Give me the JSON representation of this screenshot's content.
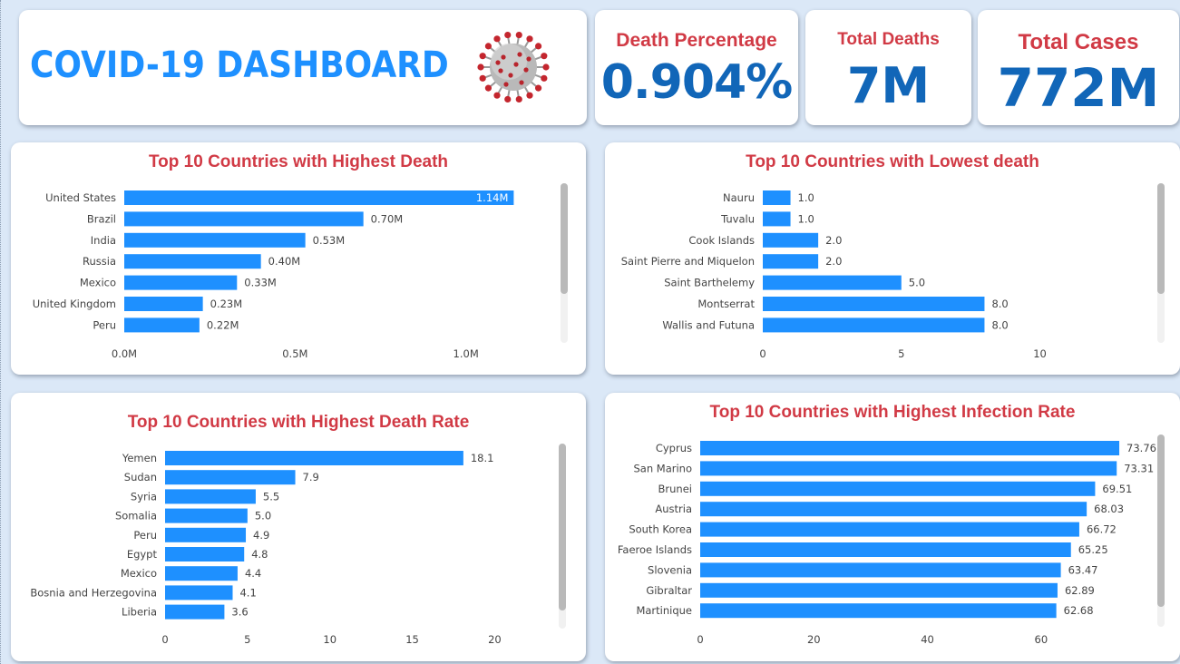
{
  "header": {
    "title": "COVID-19 DASHBOARD",
    "icon": "virus-icon"
  },
  "kpis": {
    "death_percentage": {
      "label": "Death Percentage",
      "value": "0.904%"
    },
    "total_deaths": {
      "label": "Total Deaths",
      "value": "7M"
    },
    "total_cases": {
      "label": "Total Cases",
      "value": "772M"
    }
  },
  "colors": {
    "bar": "#1e90ff",
    "title_red": "#d13a45",
    "kpi_blue": "#1166b8",
    "background": "#dbe8f7"
  },
  "chart_data": [
    {
      "type": "bar",
      "orientation": "horizontal",
      "title": "Top 10 Countries with Highest Death",
      "categories": [
        "United States",
        "Brazil",
        "India",
        "Russia",
        "Mexico",
        "United Kingdom",
        "Peru"
      ],
      "values": [
        1.14,
        0.7,
        0.53,
        0.4,
        0.33,
        0.23,
        0.22
      ],
      "data_labels": [
        "1.14M",
        "0.70M",
        "0.53M",
        "0.40M",
        "0.33M",
        "0.23M",
        "0.22M"
      ],
      "xticks": [
        0,
        0.5,
        1.0
      ],
      "xtick_labels": [
        "0.0M",
        "0.5M",
        "1.0M"
      ],
      "xlim": [
        0,
        1.2
      ],
      "grid": false
    },
    {
      "type": "bar",
      "orientation": "horizontal",
      "title": "Top 10 Countries with Lowest death",
      "categories": [
        "Nauru",
        "Tuvalu",
        "Cook Islands",
        "Saint Pierre and Miquelon",
        "Saint Barthelemy",
        "Montserrat",
        "Wallis and Futuna"
      ],
      "values": [
        1.0,
        1.0,
        2.0,
        2.0,
        5.0,
        8.0,
        8.0
      ],
      "data_labels": [
        "1.0",
        "1.0",
        "2.0",
        "2.0",
        "5.0",
        "8.0",
        "8.0"
      ],
      "xticks": [
        0,
        5,
        10
      ],
      "xtick_labels": [
        "0",
        "5",
        "10"
      ],
      "xlim": [
        0,
        12.6
      ],
      "grid": false
    },
    {
      "type": "bar",
      "orientation": "horizontal",
      "title": "Top 10 Countries with Highest Death Rate",
      "categories": [
        "Yemen",
        "Sudan",
        "Syria",
        "Somalia",
        "Peru",
        "Egypt",
        "Mexico",
        "Bosnia and Herzegovina",
        "Liberia"
      ],
      "values": [
        18.1,
        7.9,
        5.5,
        5.0,
        4.9,
        4.8,
        4.4,
        4.1,
        3.6
      ],
      "data_labels": [
        "18.1",
        "7.9",
        "5.5",
        "5.0",
        "4.9",
        "4.8",
        "4.4",
        "4.1",
        "3.6"
      ],
      "xticks": [
        0,
        5,
        10,
        15,
        20
      ],
      "xtick_labels": [
        "0",
        "5",
        "10",
        "15",
        "20"
      ],
      "xlim": [
        0,
        22.4
      ],
      "grid": false
    },
    {
      "type": "bar",
      "orientation": "horizontal",
      "title": "Top 10 Countries with Highest Infection Rate",
      "categories": [
        "Cyprus",
        "San Marino",
        "Brunei",
        "Austria",
        "South Korea",
        "Faeroe Islands",
        "Slovenia",
        "Gibraltar",
        "Martinique"
      ],
      "values": [
        73.76,
        73.31,
        69.51,
        68.03,
        66.72,
        65.25,
        63.47,
        62.89,
        62.68
      ],
      "data_labels": [
        "73.76",
        "73.31",
        "69.51",
        "68.03",
        "66.72",
        "65.25",
        "63.47",
        "62.89",
        "62.68"
      ],
      "xticks": [
        0,
        20,
        40,
        60
      ],
      "xtick_labels": [
        "0",
        "20",
        "40",
        "60"
      ],
      "xlim": [
        0,
        79.5
      ],
      "grid": false
    }
  ]
}
